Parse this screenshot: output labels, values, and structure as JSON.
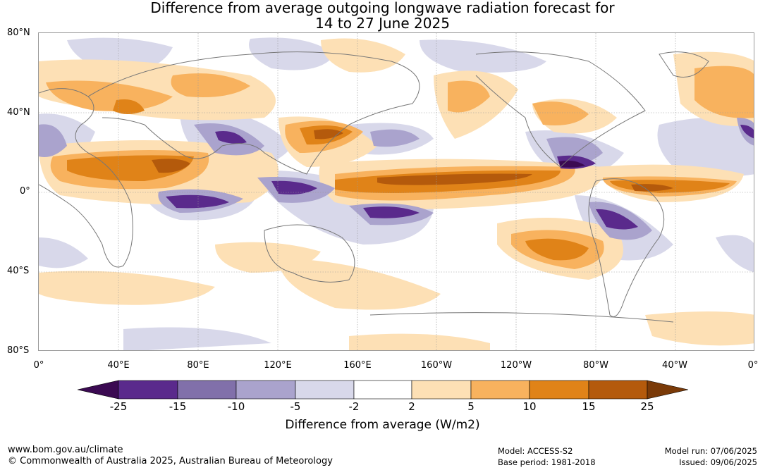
{
  "title": {
    "line1": "Difference from average outgoing longwave radiation forecast for",
    "line2": "14 to 27 June 2025"
  },
  "axes": {
    "y_ticks": [
      "80°N",
      "40°N",
      "0°",
      "40°S",
      "80°S"
    ],
    "x_ticks": [
      "0°",
      "40°E",
      "80°E",
      "120°E",
      "160°E",
      "160°W",
      "120°W",
      "80°W",
      "40°W",
      "0°"
    ]
  },
  "colorbar": {
    "title": "Difference from average (W/m2)",
    "tick_labels": [
      "-25",
      "-15",
      "-10",
      "-5",
      "-2",
      "2",
      "5",
      "10",
      "15",
      "25"
    ],
    "colors": [
      "#3b0a52",
      "#5a2a8c",
      "#8170aa",
      "#aaa3cd",
      "#d8d8ea",
      "#ffffff",
      "#fde0b5",
      "#f8b25e",
      "#e08318",
      "#b45a0c",
      "#7a3a08"
    ]
  },
  "footer": {
    "website": "www.bom.gov.au/climate",
    "copyright": "© Commonwealth of Australia 2025, Australian Bureau of Meteorology",
    "model": "Model: ACCESS-S2",
    "base_period": "Base period: 1981-2018",
    "model_run": "Model run: 07/06/2025",
    "issued": "Issued: 09/06/2025"
  }
}
